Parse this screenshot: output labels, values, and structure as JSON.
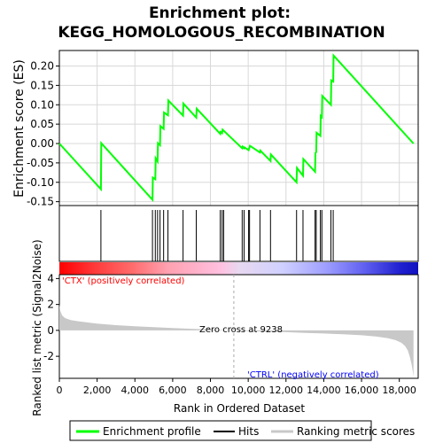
{
  "chart_data": {
    "type": "line",
    "title_line1": "Enrichment plot:",
    "title_line2": "KEGG_HOMOLOGOUS_RECOMBINATION",
    "es_panel": {
      "ylabel": "Enrichment score (ES)",
      "ylim": [
        -0.16,
        0.24
      ],
      "yticks": [
        -0.15,
        -0.1,
        -0.05,
        0.0,
        0.05,
        0.1,
        0.15,
        0.2
      ],
      "ytick_labels": [
        "-0.15",
        "-0.10",
        "-0.05",
        "0.00",
        "0.05",
        "0.10",
        "0.15",
        "0.20"
      ],
      "grid": true,
      "series": [
        {
          "name": "Enrichment profile",
          "color": "#00ff00",
          "x": [
            0,
            2200,
            2220,
            4930,
            4950,
            5080,
            5100,
            5200,
            5220,
            5330,
            5350,
            5520,
            5540,
            5750,
            5770,
            6550,
            6570,
            7250,
            7270,
            8520,
            8540,
            8620,
            8640,
            9680,
            9700,
            9780,
            9800,
            10020,
            10040,
            10070,
            10090,
            10620,
            10640,
            11180,
            11200,
            12560,
            12580,
            12900,
            12920,
            13540,
            13560,
            13600,
            13620,
            13820,
            13840,
            13900,
            13920,
            14380,
            14400,
            14500,
            14520,
            18750
          ],
          "y": [
            0.0,
            -0.118,
            0.001,
            -0.145,
            -0.088,
            -0.092,
            -0.038,
            -0.046,
            0.001,
            -0.004,
            0.045,
            0.038,
            0.08,
            0.073,
            0.111,
            0.072,
            0.103,
            0.067,
            0.09,
            0.025,
            0.03,
            0.027,
            0.036,
            -0.012,
            -0.008,
            -0.012,
            -0.01,
            -0.017,
            -0.014,
            -0.01,
            -0.006,
            -0.023,
            -0.018,
            -0.045,
            -0.028,
            -0.1,
            -0.063,
            -0.083,
            -0.04,
            -0.073,
            -0.025,
            -0.022,
            0.028,
            0.02,
            0.071,
            0.068,
            0.123,
            0.1,
            0.163,
            0.16,
            0.227,
            0.0
          ]
        }
      ]
    },
    "hits_panel": {
      "legend_name": "Hits",
      "positions": [
        2200,
        4930,
        5080,
        5200,
        5330,
        5520,
        5750,
        6550,
        7250,
        8520,
        8620,
        8700,
        9680,
        9780,
        10020,
        10070,
        10620,
        11180,
        12560,
        12900,
        13540,
        13600,
        13820,
        13900,
        14380,
        14500
      ]
    },
    "rank_panel": {
      "legend_name": "Ranking metric scores",
      "ylabel": "Ranked list metric (Signal2Noise)",
      "xlabel": "Rank in Ordered Dataset",
      "ylim": [
        -3.7,
        4.3
      ],
      "yticks": [
        -2,
        0,
        2,
        4
      ],
      "ytick_labels": [
        "-2",
        "0",
        "2",
        "4"
      ],
      "xlim": [
        0,
        19000
      ],
      "xticks": [
        0,
        2000,
        4000,
        6000,
        8000,
        10000,
        12000,
        14000,
        16000,
        18000
      ],
      "xtick_labels": [
        "0",
        "2,000",
        "4,000",
        "6,000",
        "8,000",
        "10,000",
        "12,000",
        "14,000",
        "16,000",
        "18,000"
      ],
      "total_rank": 18750,
      "zero_cross": 9238,
      "zero_cross_label": "Zero cross at 9238",
      "positive_label": "'CTX' (positively correlated)",
      "negative_label": "'CTRL' (negatively correlated)",
      "positive_color": "#ff0000",
      "negative_color": "#0000ff",
      "metric_curve": {
        "x": [
          0,
          50,
          150,
          300,
          600,
          1000,
          2000,
          3000,
          4000,
          5000,
          6000,
          7000,
          8000,
          9238,
          10000,
          11000,
          12000,
          13000,
          14000,
          15000,
          16000,
          16800,
          17400,
          17800,
          18100,
          18300,
          18450,
          18550,
          18650,
          18720,
          18750
        ],
        "y": [
          2.0,
          1.5,
          1.15,
          0.95,
          0.8,
          0.7,
          0.52,
          0.4,
          0.32,
          0.25,
          0.18,
          0.12,
          0.07,
          0.0,
          -0.05,
          -0.1,
          -0.14,
          -0.19,
          -0.24,
          -0.3,
          -0.38,
          -0.48,
          -0.6,
          -0.75,
          -0.95,
          -1.2,
          -1.55,
          -2.0,
          -2.6,
          -3.2,
          -3.6
        ]
      }
    },
    "legend": [
      {
        "name": "Enrichment profile",
        "color": "#00ff00"
      },
      {
        "name": "Hits",
        "color": "#000000"
      },
      {
        "name": "Ranking metric scores",
        "color": "#c8c8c8"
      }
    ]
  }
}
